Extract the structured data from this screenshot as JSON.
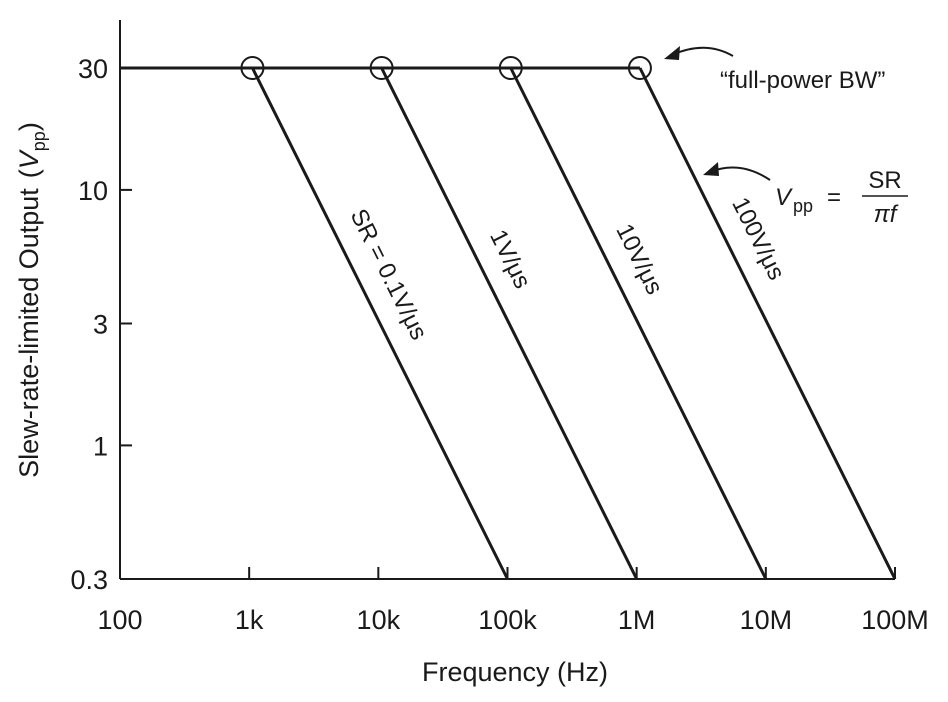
{
  "chart_data": {
    "type": "line",
    "xlabel": "Frequency (Hz)",
    "ylabel_main": "Slew-rate-limited Output",
    "ylabel_unit_v": "V",
    "ylabel_unit_sub": "pp",
    "xscale": "log",
    "yscale": "log",
    "xlim": [
      100,
      100000000
    ],
    "ylim": [
      0.3,
      30
    ],
    "x_ticks": [
      {
        "value": 100,
        "label": "100"
      },
      {
        "value": 1000,
        "label": "1k"
      },
      {
        "value": 10000,
        "label": "10k"
      },
      {
        "value": 100000,
        "label": "100k"
      },
      {
        "value": 1000000,
        "label": "1M"
      },
      {
        "value": 10000000,
        "label": "10M"
      },
      {
        "value": 100000000,
        "label": "100M"
      }
    ],
    "y_ticks": [
      {
        "value": 0.3,
        "label": "0.3"
      },
      {
        "value": 1,
        "label": "1"
      },
      {
        "value": 3,
        "label": "3"
      },
      {
        "value": 10,
        "label": "10"
      },
      {
        "value": 30,
        "label": "30"
      }
    ],
    "grid": false,
    "vmax": 30,
    "series": [
      {
        "name": "SR = 0.1V/μs",
        "sr_v_per_us": 0.1,
        "knee_hz": 1060,
        "end_hz": 100000
      },
      {
        "name": "1V/μs",
        "sr_v_per_us": 1,
        "knee_hz": 10600,
        "end_hz": 1000000
      },
      {
        "name": "10V/μs",
        "sr_v_per_us": 10,
        "knee_hz": 106000,
        "end_hz": 10000000
      },
      {
        "name": "100V/μs",
        "sr_v_per_us": 100,
        "knee_hz": 1060000,
        "end_hz": 100000000
      }
    ],
    "annotations": {
      "full_power": "“full-power BW”",
      "formula_v": "V",
      "formula_sub": "pp",
      "formula_eq": "=",
      "formula_num": "SR",
      "formula_den": "πf"
    },
    "line_color": "#1a1a1a"
  }
}
